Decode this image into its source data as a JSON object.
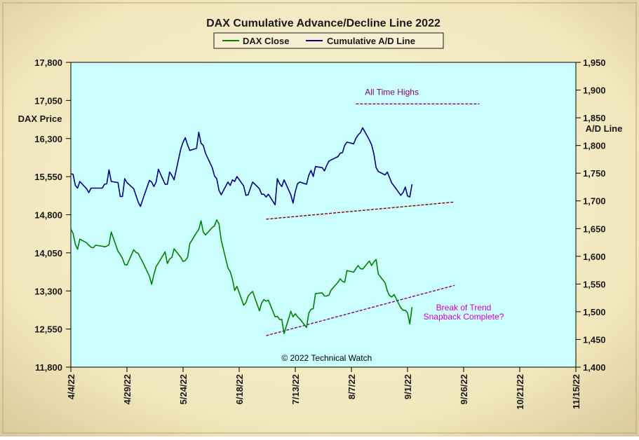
{
  "chart_data": {
    "type": "line",
    "title": "DAX Cumulative  Advance/Decline  Line  2022",
    "legend": [
      {
        "label": "DAX Close",
        "color": "#008000"
      },
      {
        "label": "Cumulative A/D Line",
        "color": "#000080"
      }
    ],
    "legend_position": "top-center",
    "left_axis": {
      "label": "DAX Price",
      "range": [
        11800,
        17800
      ],
      "ticks": [
        "17,800",
        "17,050",
        "16,300",
        "15,550",
        "14,800",
        "14,050",
        "13,300",
        "12,550",
        "11,800"
      ]
    },
    "right_axis": {
      "label": "A/D Line",
      "range": [
        1400,
        1950
      ],
      "ticks": [
        "1,950",
        "1,900",
        "1,850",
        "1,800",
        "1,750",
        "1,700",
        "1,650",
        "1,600",
        "1,550",
        "1,500",
        "1,450",
        "1,400"
      ]
    },
    "x_axis": {
      "ticks": [
        "4/4/22",
        "4/29/22",
        "5/24/22",
        "6/18/22",
        "7/13/22",
        "8/7/22",
        "9/1/22",
        "9/26/22",
        "10/21/22",
        "11/15/22"
      ],
      "range_days": [
        0,
        225
      ]
    },
    "grid": false,
    "plot_background": "#CCFFFF",
    "series": [
      {
        "name": "DAX Close",
        "axis": "left",
        "color": "#008000",
        "points": [
          [
            0,
            14518
          ],
          [
            1,
            14430
          ],
          [
            2,
            14220
          ],
          [
            3,
            14120
          ],
          [
            4,
            14320
          ],
          [
            7,
            14250
          ],
          [
            8,
            14200
          ],
          [
            9,
            14160
          ],
          [
            10,
            14150
          ],
          [
            11,
            14200
          ],
          [
            14,
            14180
          ],
          [
            15,
            14170
          ],
          [
            16,
            14180
          ],
          [
            17,
            14210
          ],
          [
            18,
            14460
          ],
          [
            21,
            14080
          ],
          [
            22,
            14020
          ],
          [
            23,
            13940
          ],
          [
            24,
            13820
          ],
          [
            25,
            13810
          ],
          [
            28,
            14110
          ],
          [
            29,
            14060
          ],
          [
            30,
            14040
          ],
          [
            31,
            13950
          ],
          [
            32,
            13870
          ],
          [
            35,
            13590
          ],
          [
            36,
            13430
          ],
          [
            37,
            13620
          ],
          [
            38,
            13780
          ],
          [
            39,
            13850
          ],
          [
            42,
            14070
          ],
          [
            43,
            13840
          ],
          [
            44,
            13930
          ],
          [
            45,
            13960
          ],
          [
            46,
            14130
          ],
          [
            49,
            13960
          ],
          [
            50,
            13880
          ],
          [
            51,
            13900
          ],
          [
            52,
            13960
          ],
          [
            53,
            14230
          ],
          [
            56,
            14450
          ],
          [
            57,
            14510
          ],
          [
            58,
            14680
          ],
          [
            59,
            14460
          ],
          [
            60,
            14400
          ],
          [
            63,
            14550
          ],
          [
            64,
            14580
          ],
          [
            65,
            14700
          ],
          [
            66,
            14620
          ],
          [
            67,
            14300
          ],
          [
            70,
            13750
          ],
          [
            71,
            13680
          ],
          [
            72,
            13530
          ],
          [
            73,
            13310
          ],
          [
            74,
            13390
          ],
          [
            77,
            13020
          ],
          [
            78,
            13070
          ],
          [
            79,
            13200
          ],
          [
            80,
            13250
          ],
          [
            81,
            13290
          ],
          [
            84,
            12910
          ],
          [
            85,
            13060
          ],
          [
            86,
            13130
          ],
          [
            87,
            13100
          ],
          [
            88,
            13120
          ],
          [
            91,
            12790
          ],
          [
            92,
            12800
          ],
          [
            93,
            12740
          ],
          [
            94,
            12740
          ],
          [
            95,
            12460
          ],
          [
            98,
            12900
          ],
          [
            99,
            12790
          ],
          [
            100,
            12850
          ],
          [
            101,
            12790
          ],
          [
            102,
            12750
          ],
          [
            105,
            12580
          ],
          [
            106,
            12860
          ],
          [
            107,
            12940
          ],
          [
            108,
            12950
          ],
          [
            109,
            13250
          ],
          [
            112,
            13260
          ],
          [
            113,
            13200
          ],
          [
            114,
            13200
          ],
          [
            115,
            13220
          ],
          [
            116,
            13320
          ],
          [
            119,
            13470
          ],
          [
            120,
            13540
          ],
          [
            121,
            13490
          ],
          [
            122,
            13470
          ],
          [
            123,
            13700
          ],
          [
            126,
            13670
          ],
          [
            127,
            13740
          ],
          [
            128,
            13800
          ],
          [
            129,
            13740
          ],
          [
            130,
            13730
          ],
          [
            133,
            13890
          ],
          [
            134,
            13800
          ],
          [
            135,
            13870
          ],
          [
            136,
            13920
          ],
          [
            137,
            13630
          ],
          [
            140,
            13460
          ],
          [
            141,
            13300
          ],
          [
            142,
            13210
          ],
          [
            143,
            13180
          ],
          [
            144,
            13230
          ],
          [
            147,
            12970
          ],
          [
            148,
            12920
          ],
          [
            149,
            12920
          ],
          [
            150,
            12870
          ],
          [
            151,
            12650
          ],
          [
            152,
            12980
          ]
        ]
      },
      {
        "name": "Cumulative A/D Line",
        "axis": "right",
        "color": "#000080",
        "points": [
          [
            0,
            1749
          ],
          [
            1,
            1748
          ],
          [
            2,
            1728
          ],
          [
            3,
            1723
          ],
          [
            4,
            1735
          ],
          [
            7,
            1722
          ],
          [
            8,
            1715
          ],
          [
            9,
            1723
          ],
          [
            10,
            1723
          ],
          [
            11,
            1723
          ],
          [
            14,
            1723
          ],
          [
            15,
            1730
          ],
          [
            16,
            1731
          ],
          [
            17,
            1756
          ],
          [
            18,
            1735
          ],
          [
            21,
            1733
          ],
          [
            22,
            1708
          ],
          [
            23,
            1708
          ],
          [
            24,
            1740
          ],
          [
            25,
            1733
          ],
          [
            28,
            1722
          ],
          [
            29,
            1710
          ],
          [
            30,
            1698
          ],
          [
            31,
            1690
          ],
          [
            32,
            1702
          ],
          [
            35,
            1737
          ],
          [
            36,
            1734
          ],
          [
            37,
            1726
          ],
          [
            38,
            1734
          ],
          [
            39,
            1757
          ],
          [
            42,
            1730
          ],
          [
            43,
            1730
          ],
          [
            44,
            1752
          ],
          [
            45,
            1746
          ],
          [
            46,
            1738
          ],
          [
            49,
            1794
          ],
          [
            50,
            1806
          ],
          [
            51,
            1814
          ],
          [
            52,
            1801
          ],
          [
            53,
            1791
          ],
          [
            56,
            1795
          ],
          [
            57,
            1824
          ],
          [
            58,
            1804
          ],
          [
            59,
            1800
          ],
          [
            60,
            1786
          ],
          [
            63,
            1760
          ],
          [
            64,
            1745
          ],
          [
            65,
            1740
          ],
          [
            66,
            1719
          ],
          [
            67,
            1711
          ],
          [
            70,
            1734
          ],
          [
            71,
            1728
          ],
          [
            72,
            1738
          ],
          [
            73,
            1735
          ],
          [
            74,
            1744
          ],
          [
            77,
            1727
          ],
          [
            78,
            1710
          ],
          [
            79,
            1711
          ],
          [
            80,
            1723
          ],
          [
            81,
            1734
          ],
          [
            84,
            1722
          ],
          [
            85,
            1712
          ],
          [
            86,
            1712
          ],
          [
            87,
            1707
          ],
          [
            88,
            1712
          ],
          [
            91,
            1693
          ],
          [
            92,
            1740
          ],
          [
            93,
            1731
          ],
          [
            94,
            1726
          ],
          [
            95,
            1738
          ],
          [
            98,
            1711
          ],
          [
            99,
            1696
          ],
          [
            100,
            1717
          ],
          [
            101,
            1731
          ],
          [
            102,
            1734
          ],
          [
            105,
            1730
          ],
          [
            106,
            1746
          ],
          [
            107,
            1755
          ],
          [
            108,
            1744
          ],
          [
            109,
            1762
          ],
          [
            112,
            1760
          ],
          [
            113,
            1754
          ],
          [
            114,
            1764
          ],
          [
            115,
            1772
          ],
          [
            116,
            1774
          ],
          [
            119,
            1780
          ],
          [
            120,
            1786
          ],
          [
            121,
            1787
          ],
          [
            122,
            1800
          ],
          [
            123,
            1806
          ],
          [
            126,
            1803
          ],
          [
            127,
            1813
          ],
          [
            128,
            1819
          ],
          [
            129,
            1823
          ],
          [
            130,
            1832
          ],
          [
            133,
            1810
          ],
          [
            134,
            1801
          ],
          [
            135,
            1785
          ],
          [
            136,
            1760
          ],
          [
            137,
            1753
          ],
          [
            140,
            1747
          ],
          [
            141,
            1752
          ],
          [
            142,
            1742
          ],
          [
            143,
            1732
          ],
          [
            144,
            1727
          ],
          [
            147,
            1710
          ],
          [
            148,
            1715
          ],
          [
            149,
            1725
          ],
          [
            150,
            1709
          ],
          [
            151,
            1707
          ],
          [
            152,
            1730
          ]
        ]
      }
    ],
    "reference_lines": [
      {
        "name": "all-time-highs",
        "axis": "right",
        "from": [
          127,
          1875
        ],
        "to": [
          182,
          1875
        ],
        "color": "#800080"
      },
      {
        "name": "ad-trend",
        "axis": "right",
        "from": [
          87,
          1667
        ],
        "to": [
          171,
          1698
        ],
        "color": "#800000"
      },
      {
        "name": "dax-trend",
        "axis": "left",
        "from": [
          87,
          12420
        ],
        "to": [
          171,
          13410
        ],
        "color": "#800080"
      }
    ],
    "annotations": [
      {
        "text": "All Time Highs",
        "x": 143,
        "y": 1891,
        "axis": "right",
        "color": "#800080"
      },
      {
        "text": "Break  of Trend",
        "x": 175,
        "y": 12920,
        "axis": "left",
        "color": "#CC00CC"
      },
      {
        "text": "Snapback Complete?",
        "x": 175,
        "y": 12740,
        "axis": "left",
        "color": "#CC00CC"
      },
      {
        "text": "© 2022 Technical  Watch",
        "x": 114,
        "y": 11925,
        "axis": "left",
        "color": "#000000"
      }
    ]
  }
}
